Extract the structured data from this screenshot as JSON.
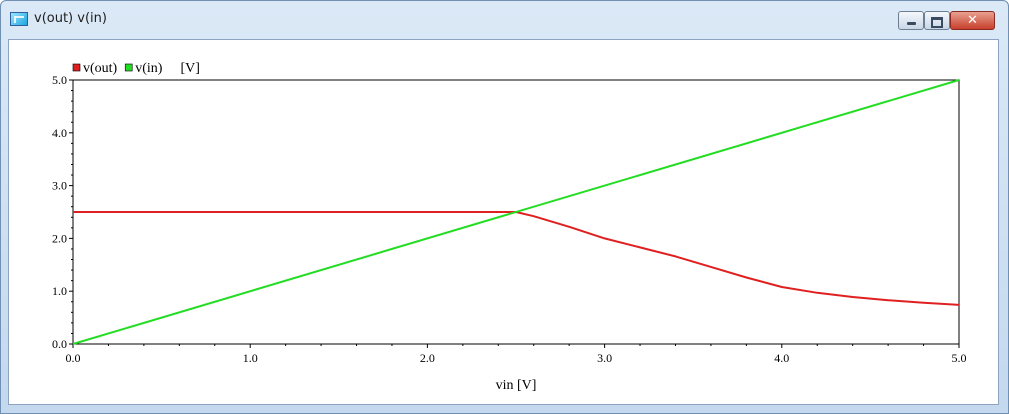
{
  "window": {
    "title": "v(out) v(in)",
    "icon": "waveform-window-icon",
    "controls": {
      "minimize": "minimize-icon",
      "maximize": "maximize-icon",
      "close": "close-icon",
      "close_glyph": "✕"
    }
  },
  "chart_data": {
    "type": "line",
    "xlabel": "vin [V]",
    "ylabel": "",
    "legend_unit": "[V]",
    "legend_position": "top-left",
    "xlim": [
      0,
      5
    ],
    "ylim": [
      0,
      5
    ],
    "x_ticks": [
      "0.0",
      "1.0",
      "2.0",
      "3.0",
      "4.0",
      "5.0"
    ],
    "y_ticks": [
      "0.0",
      "1.0",
      "2.0",
      "3.0",
      "4.0",
      "5.0"
    ],
    "grid": false,
    "series": [
      {
        "name": "v(out)",
        "color": "#e02020",
        "x": [
          0.0,
          0.5,
          1.0,
          1.5,
          2.0,
          2.5,
          2.6,
          2.8,
          3.0,
          3.2,
          3.4,
          3.6,
          3.8,
          4.0,
          4.2,
          4.4,
          4.6,
          4.8,
          5.0
        ],
        "y": [
          2.5,
          2.5,
          2.5,
          2.5,
          2.5,
          2.5,
          2.42,
          2.22,
          2.0,
          1.83,
          1.66,
          1.46,
          1.26,
          1.08,
          0.97,
          0.89,
          0.83,
          0.78,
          0.74
        ]
      },
      {
        "name": "v(in)",
        "color": "#22dd22",
        "x": [
          0.0,
          5.0
        ],
        "y": [
          0.0,
          5.0
        ]
      }
    ]
  }
}
